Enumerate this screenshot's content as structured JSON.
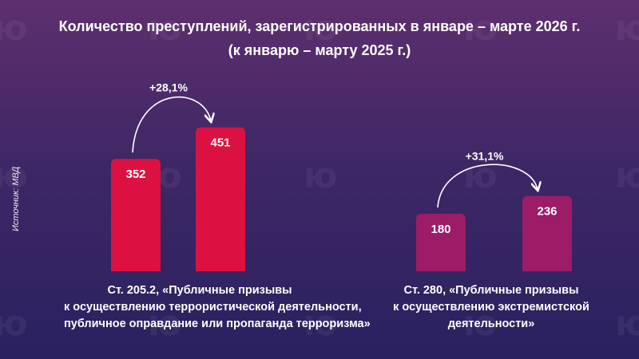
{
  "title": {
    "line1": "Количество преступлений, зарегистрированных в январе – марте 2026 г.",
    "line2": "(к январю – марту 2025 г.)"
  },
  "source": "Источник: МВД",
  "watermark_text": "ю",
  "colors": {
    "group1": "#dd1141",
    "group2": "#9c1c67"
  },
  "chart_data": {
    "type": "bar",
    "groups": [
      {
        "caption": [
          "Ст. 205.2, «Публичные призывы",
          "к осуществлению террористической деятельности,",
          "публичное оправдание или пропаганда терроризма»"
        ],
        "values": [
          352,
          451
        ],
        "change_label": "+28,1%"
      },
      {
        "caption": [
          "Ст. 280, «Публичные призывы",
          "к осуществлению экстремистской",
          "деятельности»"
        ],
        "values": [
          180,
          236
        ],
        "change_label": "+31,1%"
      }
    ]
  }
}
